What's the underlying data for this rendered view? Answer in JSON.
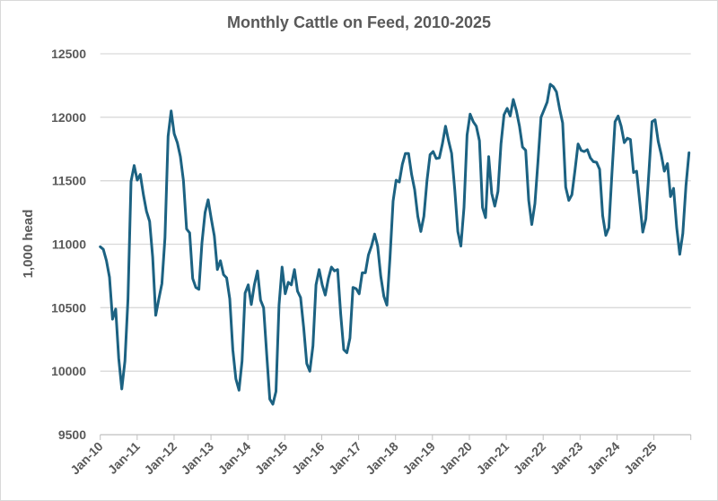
{
  "chart_data": {
    "type": "line",
    "title": "Monthly Cattle on Feed, 2010-2025",
    "xlabel": "",
    "ylabel": "1,000 head",
    "ylim": [
      9500,
      12500
    ],
    "yticks": [
      "9500",
      "10000",
      "10500",
      "11000",
      "11500",
      "12000",
      "12500"
    ],
    "xticks": [
      "Jan-10",
      "Jan-11",
      "Jan-12",
      "Jan-13",
      "Jan-14",
      "Jan-15",
      "Jan-16",
      "Jan-17",
      "Jan-18",
      "Jan-19",
      "Jan-20",
      "Jan-21",
      "Jan-22",
      "Jan-23",
      "Jan-24",
      "Jan-25"
    ],
    "grid": "horizontal",
    "legend": "none",
    "line_color": "#1c6282",
    "x": [
      "2010-01",
      "2010-02",
      "2010-03",
      "2010-04",
      "2010-05",
      "2010-06",
      "2010-07",
      "2010-08",
      "2010-09",
      "2010-10",
      "2010-11",
      "2010-12",
      "2011-01",
      "2011-02",
      "2011-03",
      "2011-04",
      "2011-05",
      "2011-06",
      "2011-07",
      "2011-08",
      "2011-09",
      "2011-10",
      "2011-11",
      "2011-12",
      "2012-01",
      "2012-02",
      "2012-03",
      "2012-04",
      "2012-05",
      "2012-06",
      "2012-07",
      "2012-08",
      "2012-09",
      "2012-10",
      "2012-11",
      "2012-12",
      "2013-01",
      "2013-02",
      "2013-03",
      "2013-04",
      "2013-05",
      "2013-06",
      "2013-07",
      "2013-08",
      "2013-09",
      "2013-10",
      "2013-11",
      "2013-12",
      "2014-01",
      "2014-02",
      "2014-03",
      "2014-04",
      "2014-05",
      "2014-06",
      "2014-07",
      "2014-08",
      "2014-09",
      "2014-10",
      "2014-11",
      "2014-12",
      "2015-01",
      "2015-02",
      "2015-03",
      "2015-04",
      "2015-05",
      "2015-06",
      "2015-07",
      "2015-08",
      "2015-09",
      "2015-10",
      "2015-11",
      "2015-12",
      "2016-01",
      "2016-02",
      "2016-03",
      "2016-04",
      "2016-05",
      "2016-06",
      "2016-07",
      "2016-08",
      "2016-09",
      "2016-10",
      "2016-11",
      "2016-12",
      "2017-01",
      "2017-02",
      "2017-03",
      "2017-04",
      "2017-05",
      "2017-06",
      "2017-07",
      "2017-08",
      "2017-09",
      "2017-10",
      "2017-11",
      "2017-12",
      "2018-01",
      "2018-02",
      "2018-03",
      "2018-04",
      "2018-05",
      "2018-06",
      "2018-07",
      "2018-08",
      "2018-09",
      "2018-10",
      "2018-11",
      "2018-12",
      "2019-01",
      "2019-02",
      "2019-03",
      "2019-04",
      "2019-05",
      "2019-06",
      "2019-07",
      "2019-08",
      "2019-09",
      "2019-10",
      "2019-11",
      "2019-12",
      "2020-01",
      "2020-02",
      "2020-03",
      "2020-04",
      "2020-05",
      "2020-06",
      "2020-07",
      "2020-08",
      "2020-09",
      "2020-10",
      "2020-11",
      "2020-12",
      "2021-01",
      "2021-02",
      "2021-03",
      "2021-04",
      "2021-05",
      "2021-06",
      "2021-07",
      "2021-08",
      "2021-09",
      "2021-10",
      "2021-11",
      "2021-12",
      "2022-01",
      "2022-02",
      "2022-03",
      "2022-04",
      "2022-05",
      "2022-06",
      "2022-07",
      "2022-08",
      "2022-09",
      "2022-10",
      "2022-11",
      "2022-12",
      "2023-01",
      "2023-02",
      "2023-03",
      "2023-04",
      "2023-05",
      "2023-06",
      "2023-07",
      "2023-08",
      "2023-09",
      "2023-10",
      "2023-11",
      "2023-12",
      "2024-01",
      "2024-02",
      "2024-03",
      "2024-04",
      "2024-05",
      "2024-06",
      "2024-07",
      "2024-08",
      "2024-09",
      "2024-10",
      "2024-11",
      "2024-12",
      "2025-01",
      "2025-02",
      "2025-03",
      "2025-04",
      "2025-05",
      "2025-06",
      "2025-07",
      "2025-08",
      "2025-09",
      "2025-10",
      "2025-11",
      "2025-12"
    ],
    "series": [
      {
        "values": [
          10980,
          10960,
          10870,
          10740,
          10410,
          10490,
          10100,
          9860,
          10080,
          10570,
          11495,
          11620,
          11505,
          11550,
          11390,
          11260,
          11180,
          10900,
          10440,
          10570,
          10690,
          11050,
          11850,
          12050,
          11870,
          11800,
          11690,
          11500,
          11120,
          11090,
          10730,
          10660,
          10645,
          11010,
          11250,
          11350,
          11205,
          11065,
          10800,
          10870,
          10760,
          10735,
          10570,
          10170,
          9940,
          9850,
          10080,
          10615,
          10680,
          10525,
          10680,
          10790,
          10560,
          10500,
          10130,
          9780,
          9740,
          9840,
          10520,
          10820,
          10610,
          10700,
          10680,
          10800,
          10630,
          10580,
          10340,
          10060,
          10000,
          10200,
          10680,
          10800,
          10680,
          10600,
          10730,
          10820,
          10790,
          10800,
          10450,
          10170,
          10145,
          10260,
          10660,
          10650,
          10610,
          10775,
          10775,
          10915,
          10985,
          11080,
          10985,
          10750,
          10590,
          10520,
          10890,
          11340,
          11505,
          11490,
          11630,
          11715,
          11715,
          11550,
          11430,
          11220,
          11100,
          11220,
          11505,
          11705,
          11730,
          11675,
          11680,
          11790,
          11930,
          11815,
          11715,
          11430,
          11100,
          10985,
          11290,
          11860,
          12025,
          11965,
          11930,
          11815,
          11290,
          11210,
          11690,
          11400,
          11300,
          11415,
          11790,
          12020,
          12070,
          12010,
          12140,
          12050,
          11930,
          11765,
          11740,
          11345,
          11155,
          11320,
          11650,
          12000,
          12060,
          12120,
          12260,
          12240,
          12200,
          12070,
          11955,
          11450,
          11345,
          11390,
          11580,
          11790,
          11740,
          11730,
          11745,
          11680,
          11650,
          11645,
          11590,
          11225,
          11070,
          11130,
          11555,
          11965,
          12010,
          11930,
          11800,
          11835,
          11825,
          11565,
          11575,
          11340,
          11095,
          11200,
          11575,
          11965,
          11980,
          11810,
          11705,
          11575,
          11635,
          11375,
          11440,
          11130,
          10920,
          11085,
          11460,
          11720
        ]
      }
    ]
  }
}
